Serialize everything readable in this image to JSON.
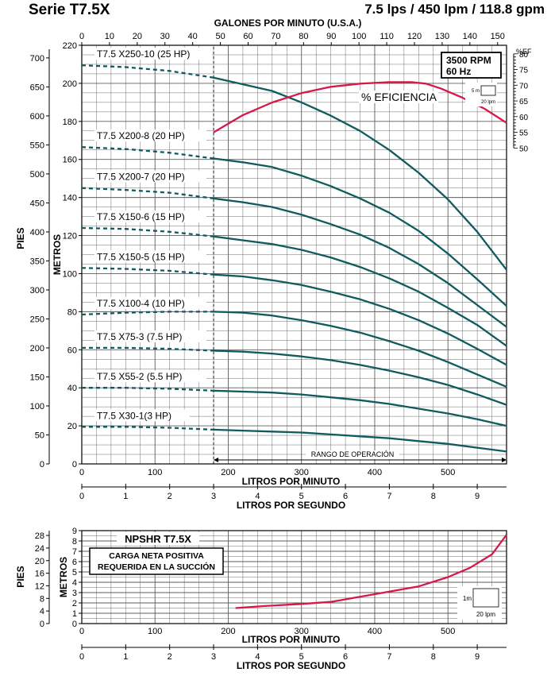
{
  "header": {
    "series": "Serie T7.5X",
    "specs": "7.5 lps / 450 lpm / 118.8 gpm"
  },
  "colors": {
    "curve": "#0f5b5e",
    "efficiency": "#d6184a",
    "grid": "#5d5d5d",
    "background": "#ffffff"
  },
  "chart_data": [
    {
      "type": "line",
      "title": "",
      "top_axis": {
        "label": "GALONES POR MINUTO (U.S.A.)",
        "ticks": [
          0,
          10,
          20,
          30,
          40,
          50,
          60,
          70,
          80,
          90,
          100,
          110,
          120,
          130,
          140,
          150
        ]
      },
      "xlabel": "LITROS POR MINUTO",
      "xlim": [
        0,
        580
      ],
      "x_ticks": [
        0,
        100,
        200,
        300,
        400,
        500
      ],
      "second_x_axis": {
        "label": "LITROS POR SEGUNDO",
        "ticks": [
          0,
          1,
          2,
          3,
          4,
          5,
          6,
          7,
          8,
          9
        ]
      },
      "ylabel": "METROS",
      "ylim": [
        0,
        220
      ],
      "y_ticks": [
        0,
        20,
        40,
        60,
        80,
        100,
        120,
        140,
        160,
        180,
        200,
        220
      ],
      "feet_axis": {
        "label": "PIES",
        "ticks": [
          0,
          50,
          100,
          150,
          200,
          250,
          300,
          350,
          400,
          450,
          500,
          550,
          600,
          650,
          700
        ]
      },
      "efficiency_axis": {
        "label": "%EF",
        "ticks": [
          50,
          55,
          60,
          65,
          70,
          75,
          80
        ]
      },
      "badge": [
        "3500 RPM",
        "60 Hz"
      ],
      "scale_key": {
        "y": "5 m",
        "x": "20 lpm"
      },
      "range_label": "RANGO DE OPERACIÓN",
      "range_lpm": [
        180,
        580
      ],
      "grid": true,
      "series": [
        {
          "name": "T7.5 X250-10 (25 HP)",
          "x": [
            0,
            60,
            120,
            180,
            220,
            260,
            300,
            340,
            380,
            420,
            460,
            500,
            540,
            580
          ],
          "y": [
            209.5,
            208.5,
            206.5,
            203,
            199.5,
            196,
            190,
            183,
            175,
            165,
            153,
            139,
            122,
            102
          ]
        },
        {
          "name": "T7.5 X200-8 (20 HP)",
          "x": [
            0,
            60,
            120,
            180,
            220,
            260,
            300,
            340,
            380,
            420,
            460,
            500,
            540,
            580
          ],
          "y": [
            166.5,
            165.5,
            163.5,
            160.5,
            158.5,
            156,
            151.5,
            146,
            139.5,
            132,
            122.5,
            110.5,
            97,
            83
          ]
        },
        {
          "name": "T7.5 X200-7 (20 HP)",
          "x": [
            0,
            60,
            120,
            180,
            220,
            260,
            300,
            340,
            380,
            420,
            460,
            500,
            540,
            580
          ],
          "y": [
            145,
            144,
            142.5,
            139.5,
            137.5,
            135,
            131,
            126,
            120.5,
            113.5,
            105,
            95,
            83.5,
            72
          ]
        },
        {
          "name": "T7.5 X150-6 (15 HP)",
          "x": [
            0,
            60,
            120,
            180,
            220,
            260,
            300,
            340,
            380,
            420,
            460,
            500,
            540,
            580
          ],
          "y": [
            124,
            123.5,
            122,
            119.5,
            117.5,
            115.5,
            112.5,
            108.5,
            103.5,
            97.5,
            90.5,
            82,
            73,
            62
          ]
        },
        {
          "name": "T7.5 X150-5 (15 HP)",
          "x": [
            0,
            60,
            120,
            180,
            220,
            260,
            300,
            340,
            380,
            420,
            460,
            500,
            540,
            580
          ],
          "y": [
            103,
            102.5,
            101.5,
            99.5,
            98.5,
            96.5,
            94,
            90.5,
            86.5,
            81.5,
            75.5,
            68.5,
            60.5,
            52
          ]
        },
        {
          "name": "T7.5 X100-4 (10 HP)",
          "x": [
            0,
            60,
            120,
            180,
            220,
            260,
            300,
            340,
            380,
            420,
            460,
            500,
            540,
            580
          ],
          "y": [
            78.5,
            79.5,
            80,
            80,
            79.5,
            78,
            75.5,
            72.5,
            69,
            64.5,
            59.5,
            53.5,
            47,
            40.5
          ]
        },
        {
          "name": "T7.5 X75-3 (7.5 HP)",
          "x": [
            0,
            60,
            120,
            180,
            220,
            260,
            300,
            340,
            380,
            420,
            460,
            500,
            540,
            580
          ],
          "y": [
            61,
            61,
            60.5,
            59.5,
            59,
            58,
            56.5,
            54.5,
            52,
            49,
            45.5,
            41.5,
            36.5,
            31
          ]
        },
        {
          "name": "T7.5 X55-2 (5.5 HP)",
          "x": [
            0,
            60,
            120,
            180,
            220,
            260,
            300,
            340,
            380,
            420,
            460,
            500,
            540,
            580
          ],
          "y": [
            40,
            40,
            39.5,
            38.5,
            38,
            37.5,
            36.5,
            35,
            33.5,
            31.5,
            29,
            26.5,
            23.5,
            20
          ]
        },
        {
          "name": "T7.5 X30-1(3 HP)",
          "x": [
            0,
            60,
            120,
            180,
            220,
            260,
            300,
            340,
            380,
            420,
            460,
            500,
            540,
            580
          ],
          "y": [
            19.5,
            19.5,
            19,
            18,
            17.5,
            17,
            16.5,
            15.5,
            14.5,
            13.5,
            12,
            10.5,
            8.5,
            6.5
          ]
        }
      ],
      "efficiency": {
        "name": "% EFICIENCIA",
        "x": [
          180,
          220,
          260,
          300,
          340,
          380,
          420,
          450,
          470,
          490,
          520,
          550,
          580
        ],
        "y": [
          55,
          60.5,
          64.5,
          67.5,
          69.5,
          70.5,
          71,
          71,
          70.5,
          69,
          66,
          62.5,
          58
        ]
      }
    },
    {
      "type": "line",
      "title": "NPSHR T7.5X",
      "note": [
        "CARGA NETA POSITIVA",
        "REQUERIDA EN LA SUCCIÓN"
      ],
      "xlabel": "LITROS POR MINUTO",
      "xlim": [
        0,
        580
      ],
      "x_ticks": [
        0,
        100,
        200,
        300,
        400,
        500
      ],
      "second_x_axis": {
        "label": "LITROS POR SEGUNDO",
        "ticks": [
          0,
          1,
          2,
          3,
          4,
          5,
          6,
          7,
          8,
          9
        ]
      },
      "ylabel": "METROS",
      "ylim": [
        0,
        9
      ],
      "y_ticks": [
        0,
        1,
        2,
        3,
        4,
        5,
        6,
        7,
        8,
        9
      ],
      "feet_axis": {
        "label": "PIES",
        "ticks": [
          0,
          4,
          8,
          12,
          16,
          20,
          24,
          28
        ]
      },
      "scale_key": {
        "y": "1m",
        "x": "20 lpm"
      },
      "grid": true,
      "series": [
        {
          "name": "NPSHR",
          "x": [
            210,
            250,
            300,
            340,
            380,
            420,
            460,
            500,
            530,
            560,
            580
          ],
          "y": [
            1.5,
            1.7,
            1.9,
            2.1,
            2.6,
            3.1,
            3.6,
            4.5,
            5.4,
            6.7,
            8.6
          ]
        }
      ]
    }
  ]
}
